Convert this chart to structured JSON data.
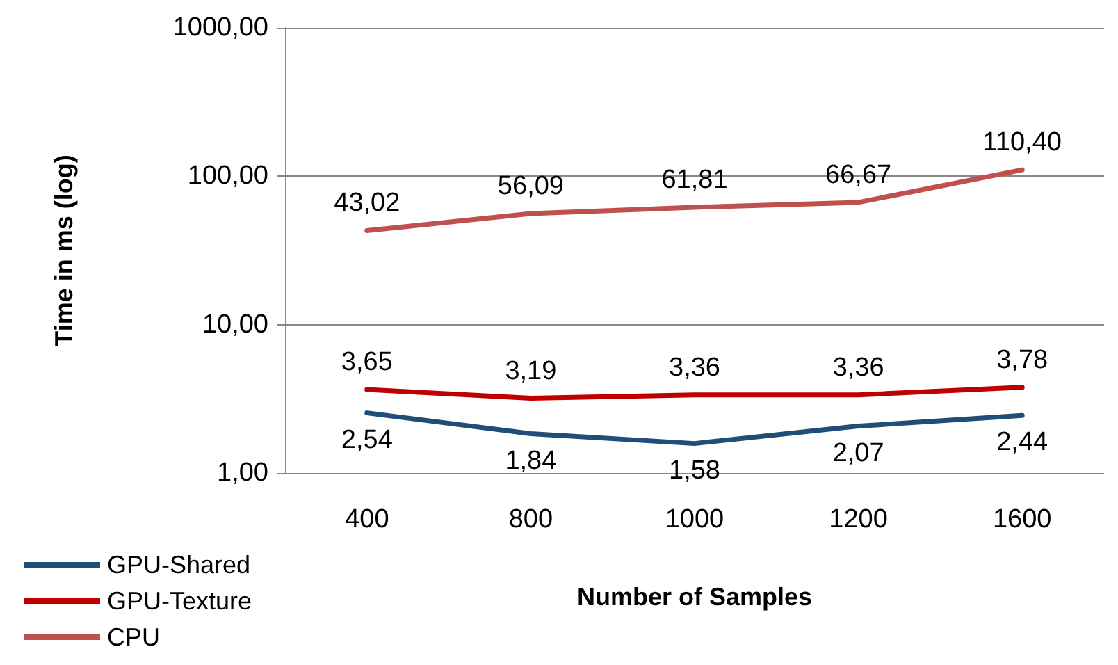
{
  "chart_data": {
    "type": "line",
    "xlabel": "Number of Samples",
    "ylabel": "Time in ms (log)",
    "categories": [
      "400",
      "800",
      "1000",
      "1200",
      "1600"
    ],
    "series": [
      {
        "name": "GPU-Shared",
        "color": "#1f4e79",
        "values": [
          2.54,
          1.84,
          1.58,
          2.07,
          2.44
        ],
        "value_labels": [
          "2,54",
          "1,84",
          "1,58",
          "2,07",
          "2,44"
        ]
      },
      {
        "name": "GPU-Texture",
        "color": "#c00000",
        "values": [
          3.65,
          3.19,
          3.36,
          3.36,
          3.78
        ],
        "value_labels": [
          "3,65",
          "3,19",
          "3,36",
          "3,36",
          "3,78"
        ]
      },
      {
        "name": "CPU",
        "color": "#c0504d",
        "values": [
          43.02,
          56.09,
          61.81,
          66.67,
          110.4
        ],
        "value_labels": [
          "43,02",
          "56,09",
          "61,81",
          "66,67",
          "110,40"
        ]
      }
    ],
    "log": "y",
    "ylim": [
      1,
      1000
    ],
    "yticks": [
      {
        "value": 1,
        "label": "1,00"
      },
      {
        "value": 10,
        "label": "10,00"
      },
      {
        "value": 100,
        "label": "100,00"
      },
      {
        "value": 1000,
        "label": "1000,00"
      }
    ],
    "grid": "y",
    "legend": "bottom left",
    "marker": "none",
    "line_style": "solid"
  }
}
